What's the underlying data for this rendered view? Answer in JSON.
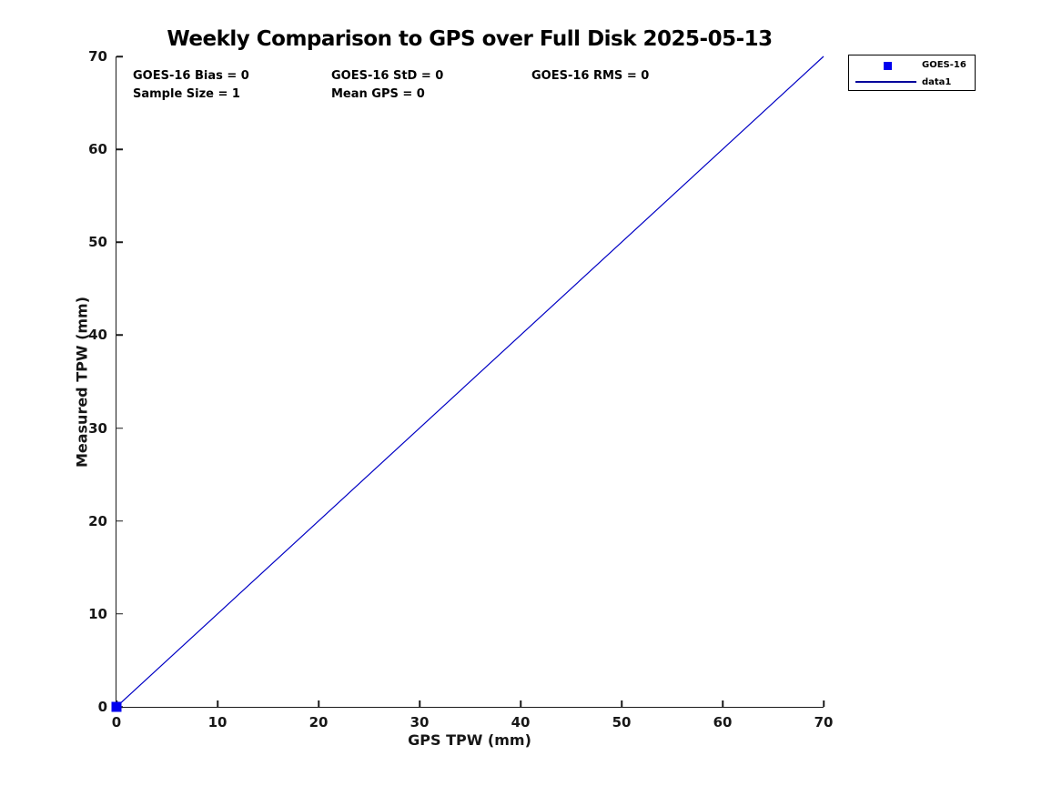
{
  "title": "Weekly Comparison to GPS over Full Disk 2025-05-13",
  "annotations": {
    "bias": "GOES-16 Bias = 0",
    "std": "GOES-16 StD = 0",
    "rms": "GOES-16 RMS = 0",
    "sample_size": "Sample Size = 1",
    "mean_gps": "Mean GPS = 0"
  },
  "legend": {
    "items": [
      {
        "label": "GOES-16",
        "marker": "square",
        "color": "#0000EE"
      },
      {
        "label": "data1",
        "marker": "line",
        "color": "#00009B"
      }
    ]
  },
  "colors": {
    "background": "#ffffff",
    "axis": "#1a1a1a",
    "line": "#0000C4",
    "marker": "#0000EE",
    "text": "#000000"
  },
  "chart_data": {
    "type": "line",
    "title": "Weekly Comparison to GPS over Full Disk 2025-05-13",
    "xlabel": "GPS TPW (mm)",
    "ylabel": "Measured TPW (mm)",
    "xlim": [
      0,
      70
    ],
    "ylim": [
      0,
      70
    ],
    "x_ticks": [
      0,
      10,
      20,
      30,
      40,
      50,
      60,
      70
    ],
    "y_ticks": [
      0,
      10,
      20,
      30,
      40,
      50,
      60,
      70
    ],
    "grid": false,
    "legend_position": "outside-top-right",
    "series": [
      {
        "name": "GOES-16",
        "type": "scatter",
        "marker": "square",
        "color": "#0000EE",
        "points": [
          [
            0,
            0
          ]
        ]
      },
      {
        "name": "data1",
        "type": "line",
        "color": "#0000C4",
        "points": [
          [
            0,
            0
          ],
          [
            70,
            70
          ]
        ]
      }
    ],
    "stats": {
      "bias": 0,
      "std": 0,
      "rms": 0,
      "sample_size": 1,
      "mean_gps": 0
    }
  }
}
